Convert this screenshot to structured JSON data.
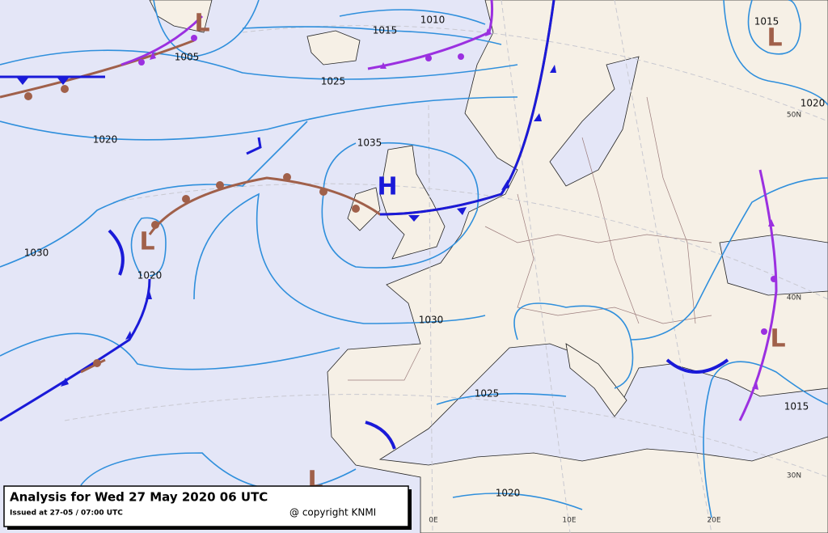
{
  "title": "Analysis for Wed 27 May 2020 06 UTC",
  "issued": "Issued at 27-05 / 07:00 UTC",
  "copyright": "@ copyright KNMI",
  "isobar_labels": [
    "1010",
    "1015",
    "1005",
    "1025",
    "1020",
    "1035",
    "1030",
    "1020",
    "1030",
    "1025",
    "1020",
    "1020",
    "1015",
    "1015"
  ],
  "pressure_centers": [
    "H",
    "L",
    "L",
    "L",
    "L",
    "L"
  ],
  "graticule_labels": [
    "50N",
    "40N",
    "30N",
    "0E",
    "10E",
    "20E"
  ]
}
